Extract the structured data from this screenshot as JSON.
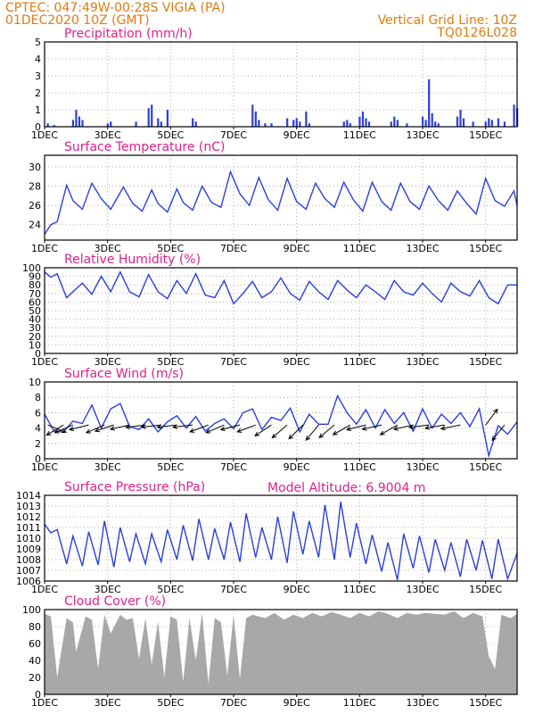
{
  "header": {
    "left_line1": "CPTEC:   047:49W-00:28S  VIGIA (PA)",
    "left_line2": "01DEC2020 10Z (GMT)",
    "right_line1": "Vertical Grid Line: 10Z",
    "right_line2": "TQ0126L028",
    "model_altitude": "Model Altitude: 6.9004 m"
  },
  "colors": {
    "header": "#e07a10",
    "title": "#e0208a",
    "series": "#2a3ee0",
    "cloud": "#a8a8a8",
    "bars": "#2a3ee0"
  },
  "x_ticks": [
    "1DEC",
    "3DEC",
    "5DEC",
    "7DEC",
    "9DEC",
    "11DEC",
    "13DEC",
    "15DEC"
  ],
  "chart_data": [
    {
      "type": "bar",
      "title": "Precipitation (mm/h)",
      "ylim": [
        0,
        5
      ],
      "yticks": [
        "0",
        "1",
        "2",
        "3",
        "4",
        "5"
      ],
      "xlim": [
        0,
        15
      ],
      "grid": true,
      "x": [
        0.1,
        0.3,
        0.9,
        1.0,
        1.1,
        1.2,
        2.0,
        2.1,
        2.9,
        3.3,
        3.4,
        3.6,
        3.7,
        3.9,
        4.7,
        4.8,
        6.6,
        6.7,
        6.8,
        7.0,
        7.2,
        7.7,
        7.9,
        8.0,
        8.1,
        8.3,
        8.4,
        9.5,
        9.6,
        9.7,
        10.0,
        10.1,
        10.2,
        10.3,
        11.0,
        11.1,
        11.2,
        11.5,
        12.0,
        12.1,
        12.2,
        12.3,
        12.4,
        12.5,
        13.1,
        13.2,
        13.3,
        13.6,
        14.0,
        14.1,
        14.2,
        14.4,
        14.6,
        14.9,
        15.0
      ],
      "values": [
        0.2,
        0.1,
        0.4,
        1.0,
        0.6,
        0.4,
        0.2,
        0.3,
        0.3,
        1.1,
        1.3,
        0.5,
        0.3,
        1.0,
        0.5,
        0.3,
        1.3,
        0.9,
        0.4,
        0.2,
        0.2,
        0.5,
        0.4,
        0.5,
        0.3,
        0.9,
        0.2,
        0.3,
        0.4,
        0.2,
        0.6,
        0.9,
        0.5,
        0.3,
        0.3,
        0.6,
        0.4,
        0.2,
        0.6,
        0.4,
        2.8,
        0.8,
        0.3,
        0.2,
        0.6,
        1.0,
        0.5,
        0.3,
        0.3,
        0.5,
        0.4,
        0.5,
        0.3,
        1.3,
        1.1
      ]
    },
    {
      "type": "line",
      "title": "Surface Temperature (nC)",
      "ylim": [
        22.4,
        31.2
      ],
      "yticks": [
        "24",
        "26",
        "28",
        "30"
      ],
      "xlim": [
        0,
        15
      ],
      "grid": true,
      "x": [
        0,
        0.2,
        0.4,
        0.7,
        0.9,
        1.2,
        1.5,
        1.8,
        2.1,
        2.5,
        2.8,
        3.1,
        3.4,
        3.6,
        3.9,
        4.2,
        4.4,
        4.7,
        5.0,
        5.3,
        5.6,
        5.9,
        6.2,
        6.5,
        6.8,
        7.1,
        7.4,
        7.7,
        8.0,
        8.3,
        8.6,
        8.9,
        9.2,
        9.5,
        9.8,
        10.1,
        10.4,
        10.7,
        11.0,
        11.3,
        11.6,
        11.9,
        12.2,
        12.5,
        12.8,
        13.1,
        13.4,
        13.7,
        14.0,
        14.3,
        14.6,
        14.9,
        15.0
      ],
      "values": [
        23.0,
        24.0,
        24.3,
        28.1,
        26.5,
        25.6,
        28.3,
        26.7,
        25.6,
        27.9,
        26.2,
        25.4,
        27.6,
        26.2,
        25.3,
        27.7,
        26.3,
        25.5,
        28.0,
        26.3,
        25.8,
        29.5,
        27.2,
        26.0,
        28.9,
        26.6,
        25.5,
        28.8,
        26.4,
        25.6,
        28.3,
        26.7,
        25.8,
        28.4,
        26.6,
        25.4,
        28.4,
        26.4,
        25.5,
        28.3,
        26.4,
        25.6,
        28.0,
        26.5,
        25.5,
        27.5,
        26.2,
        25.1,
        28.8,
        26.5,
        25.9,
        27.5,
        26.0
      ]
    },
    {
      "type": "line",
      "title": "Relative Humidity (%)",
      "ylim": [
        0,
        100
      ],
      "yticks": [
        "0",
        "10",
        "20",
        "30",
        "40",
        "50",
        "60",
        "70",
        "80",
        "90",
        "100"
      ],
      "xlim": [
        0,
        15
      ],
      "grid": true,
      "x": [
        0,
        0.2,
        0.4,
        0.7,
        0.9,
        1.2,
        1.5,
        1.8,
        2.1,
        2.4,
        2.7,
        3.0,
        3.3,
        3.6,
        3.9,
        4.2,
        4.5,
        4.8,
        5.1,
        5.4,
        5.7,
        6.0,
        6.3,
        6.6,
        6.9,
        7.2,
        7.5,
        7.8,
        8.1,
        8.4,
        8.7,
        9.0,
        9.3,
        9.6,
        9.9,
        10.2,
        10.5,
        10.8,
        11.1,
        11.4,
        11.7,
        12.0,
        12.3,
        12.6,
        12.9,
        13.2,
        13.5,
        13.8,
        14.1,
        14.4,
        14.7,
        15.0
      ],
      "values": [
        95,
        89,
        93,
        65,
        72,
        82,
        69,
        90,
        72,
        95,
        72,
        66,
        92,
        72,
        64,
        85,
        70,
        93,
        68,
        65,
        85,
        58,
        70,
        84,
        65,
        72,
        88,
        70,
        62,
        84,
        72,
        63,
        85,
        74,
        65,
        80,
        72,
        63,
        85,
        72,
        68,
        82,
        70,
        60,
        82,
        72,
        67,
        85,
        65,
        58,
        80,
        80
      ]
    },
    {
      "type": "line",
      "title": "Surface Wind (m/s)",
      "ylim": [
        0,
        10
      ],
      "yticks": [
        "0",
        "2",
        "4",
        "6",
        "8",
        "10"
      ],
      "xlim": [
        0,
        15
      ],
      "grid": true,
      "x": [
        0,
        0.3,
        0.6,
        0.9,
        1.2,
        1.5,
        1.8,
        2.1,
        2.4,
        2.7,
        3.0,
        3.3,
        3.6,
        3.9,
        4.2,
        4.5,
        4.8,
        5.1,
        5.4,
        5.7,
        6.0,
        6.3,
        6.6,
        6.9,
        7.2,
        7.5,
        7.8,
        8.1,
        8.4,
        8.7,
        9.0,
        9.3,
        9.6,
        9.9,
        10.2,
        10.5,
        10.8,
        11.1,
        11.4,
        11.7,
        12.0,
        12.3,
        12.6,
        12.9,
        13.2,
        13.5,
        13.8,
        14.1,
        14.4,
        14.7,
        15.0
      ],
      "values": [
        5.8,
        3.6,
        3.5,
        4.9,
        4.6,
        7.0,
        4.0,
        6.5,
        7.2,
        4.2,
        3.8,
        5.2,
        3.5,
        4.8,
        5.6,
        4.0,
        5.5,
        3.6,
        4.6,
        5.2,
        3.9,
        6.0,
        6.5,
        3.8,
        5.4,
        5.0,
        6.6,
        3.5,
        5.8,
        4.5,
        4.5,
        8.2,
        6.0,
        4.5,
        6.4,
        4.0,
        6.4,
        4.6,
        6.0,
        3.6,
        6.5,
        4.0,
        5.8,
        4.6,
        6.0,
        4.2,
        6.5,
        0.4,
        4.3,
        3.2,
        4.8
      ],
      "vectors_x": [
        0.1,
        0.6,
        0.9,
        1.4,
        1.9,
        2.2,
        2.7,
        3.2,
        3.7,
        4.2,
        4.7,
        5.2,
        5.7,
        6.2,
        6.7,
        7.2,
        7.7,
        8.2,
        8.7,
        9.2,
        9.7,
        10.2,
        10.7,
        11.2,
        11.7,
        12.2,
        12.7,
        13.2,
        14.0,
        14.6
      ],
      "vectors_u": [
        0.5,
        -0.5,
        -0.7,
        -0.8,
        -0.7,
        -0.9,
        -0.9,
        -0.8,
        -0.9,
        -0.9,
        -0.9,
        -0.8,
        -0.7,
        -0.8,
        -0.8,
        -0.6,
        -0.7,
        -0.6,
        -0.5,
        -0.6,
        -0.7,
        -0.8,
        -0.9,
        -0.7,
        -0.9,
        -0.8,
        -0.6,
        -0.5,
        0.3,
        -0.4
      ],
      "vectors_v": [
        -0.2,
        -0.3,
        -0.3,
        -0.2,
        -0.3,
        -0.3,
        -0.2,
        -0.1,
        -0.1,
        -0.1,
        -0.1,
        -0.3,
        -0.3,
        -0.2,
        -0.3,
        -0.4,
        -0.6,
        -0.6,
        -0.6,
        -0.5,
        -0.4,
        -0.2,
        -0.2,
        -0.4,
        -0.2,
        -0.1,
        -0.1,
        -0.1,
        0.4,
        -0.5
      ]
    },
    {
      "type": "line",
      "title": "Surface Pressure (hPa)",
      "ylim": [
        1006,
        1014
      ],
      "yticks": [
        "1006",
        "1007",
        "1008",
        "1009",
        "1010",
        "1011",
        "1012",
        "1013",
        "1014"
      ],
      "xlim": [
        0,
        15
      ],
      "grid": true,
      "x": [
        0,
        0.2,
        0.4,
        0.7,
        0.9,
        1.2,
        1.4,
        1.7,
        1.9,
        2.2,
        2.4,
        2.7,
        2.9,
        3.2,
        3.4,
        3.7,
        3.9,
        4.2,
        4.4,
        4.7,
        4.9,
        5.2,
        5.4,
        5.7,
        5.9,
        6.2,
        6.4,
        6.7,
        6.9,
        7.2,
        7.4,
        7.7,
        7.9,
        8.2,
        8.4,
        8.7,
        8.9,
        9.2,
        9.4,
        9.7,
        9.9,
        10.2,
        10.4,
        10.7,
        10.9,
        11.2,
        11.4,
        11.7,
        11.9,
        12.2,
        12.4,
        12.7,
        12.9,
        13.2,
        13.4,
        13.7,
        13.9,
        14.2,
        14.4,
        14.7,
        15.0
      ],
      "values": [
        1011.3,
        1010.5,
        1010.8,
        1007.6,
        1010.2,
        1007.4,
        1010.6,
        1007.5,
        1011.6,
        1007.3,
        1011.0,
        1007.8,
        1010.4,
        1007.6,
        1010.4,
        1007.8,
        1010.8,
        1008.0,
        1011.2,
        1007.9,
        1011.8,
        1008.0,
        1010.9,
        1008.0,
        1011.5,
        1007.8,
        1012.3,
        1008.2,
        1011.0,
        1008.0,
        1012.0,
        1007.7,
        1012.5,
        1008.5,
        1011.6,
        1008.2,
        1013.1,
        1008.0,
        1013.4,
        1008.2,
        1011.4,
        1007.6,
        1010.3,
        1006.9,
        1009.6,
        1006.1,
        1010.4,
        1007.2,
        1010.2,
        1006.8,
        1009.9,
        1007.0,
        1009.6,
        1006.4,
        1009.9,
        1007.0,
        1009.8,
        1006.2,
        1009.9,
        1006.2,
        1008.6
      ]
    },
    {
      "type": "area",
      "title": "Cloud Cover (%)",
      "ylim": [
        0,
        100
      ],
      "yticks": [
        "0",
        "20",
        "40",
        "60",
        "80",
        "100"
      ],
      "xlim": [
        0,
        15
      ],
      "grid": true,
      "x": [
        0,
        0.2,
        0.4,
        0.7,
        0.9,
        1.0,
        1.3,
        1.5,
        1.7,
        1.9,
        2.1,
        2.4,
        2.6,
        2.8,
        3.0,
        3.2,
        3.4,
        3.6,
        3.8,
        4.0,
        4.2,
        4.4,
        4.6,
        4.8,
        5.0,
        5.2,
        5.4,
        5.6,
        5.8,
        6.0,
        6.2,
        6.4,
        6.6,
        6.8,
        7.0,
        7.3,
        7.6,
        7.9,
        8.2,
        8.5,
        8.8,
        9.1,
        9.4,
        9.7,
        10.0,
        10.3,
        10.6,
        10.9,
        11.2,
        11.5,
        11.8,
        12.1,
        12.4,
        12.7,
        13.0,
        13.3,
        13.6,
        13.9,
        14.1,
        14.3,
        14.5,
        14.8,
        15.0
      ],
      "values": [
        95,
        92,
        20,
        90,
        85,
        50,
        92,
        88,
        30,
        94,
        72,
        94,
        88,
        90,
        42,
        90,
        35,
        86,
        20,
        92,
        88,
        15,
        90,
        40,
        96,
        12,
        90,
        85,
        22,
        94,
        18,
        90,
        94,
        92,
        90,
        96,
        88,
        94,
        90,
        96,
        92,
        97,
        94,
        90,
        96,
        92,
        98,
        95,
        90,
        96,
        94,
        96,
        95,
        94,
        98,
        90,
        96,
        92,
        45,
        30,
        94,
        90,
        95
      ]
    }
  ]
}
